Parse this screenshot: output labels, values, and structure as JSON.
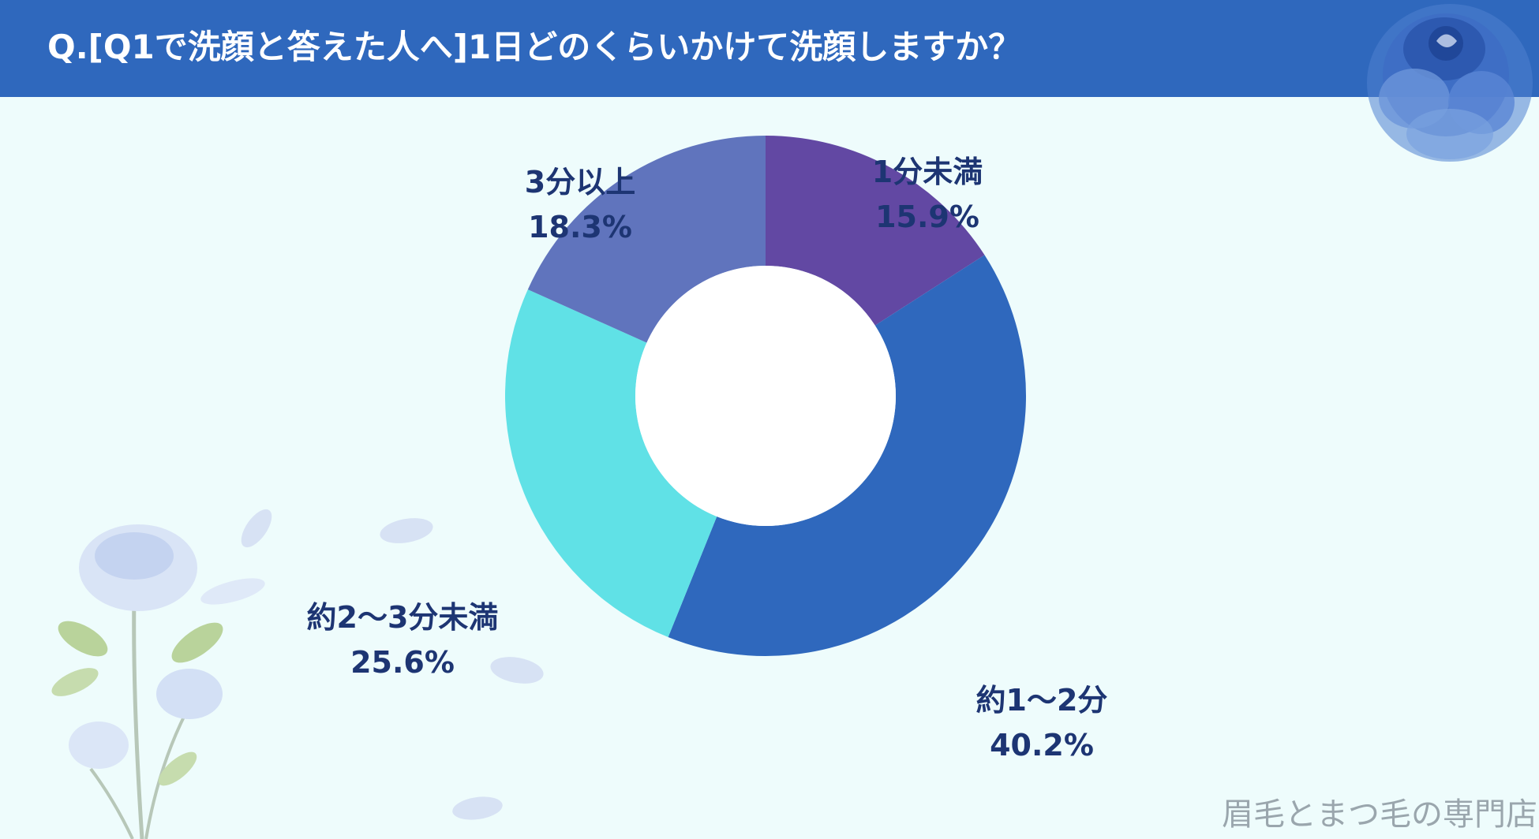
{
  "header": {
    "title": "Q.[Q1で洗顔と答えた人へ]1日どのくらいかけて洗顔しますか？"
  },
  "chart_data": {
    "type": "pie",
    "title": "Q.[Q1で洗顔と答えた人へ]1日どのくらいかけて洗顔しますか？",
    "donut": true,
    "start_angle_deg": 0,
    "direction": "clockwise",
    "unit": "%",
    "slices": [
      {
        "label": "1分未満",
        "value": 15.9,
        "value_text": "15.9%",
        "color": "#6248a3"
      },
      {
        "label": "約1～2分",
        "value": 40.2,
        "value_text": "40.2%",
        "color": "#2f68bd"
      },
      {
        "label": "約2～3分未満",
        "value": 25.6,
        "value_text": "25.6%",
        "color": "#60e1e6"
      },
      {
        "label": "3分以上",
        "value": 18.3,
        "value_text": "18.3%",
        "color": "#6074bd"
      }
    ]
  },
  "colors": {
    "header": "#2f68bd",
    "background": "#eefcfc",
    "label_text": "#1d3573",
    "watermark_text": "#9aa6ad"
  },
  "decorations": {
    "top_right": "blue-rose-icon",
    "bottom_left": "white-rose-branch-icon"
  },
  "watermark": "眉毛とまつ毛の専門店"
}
